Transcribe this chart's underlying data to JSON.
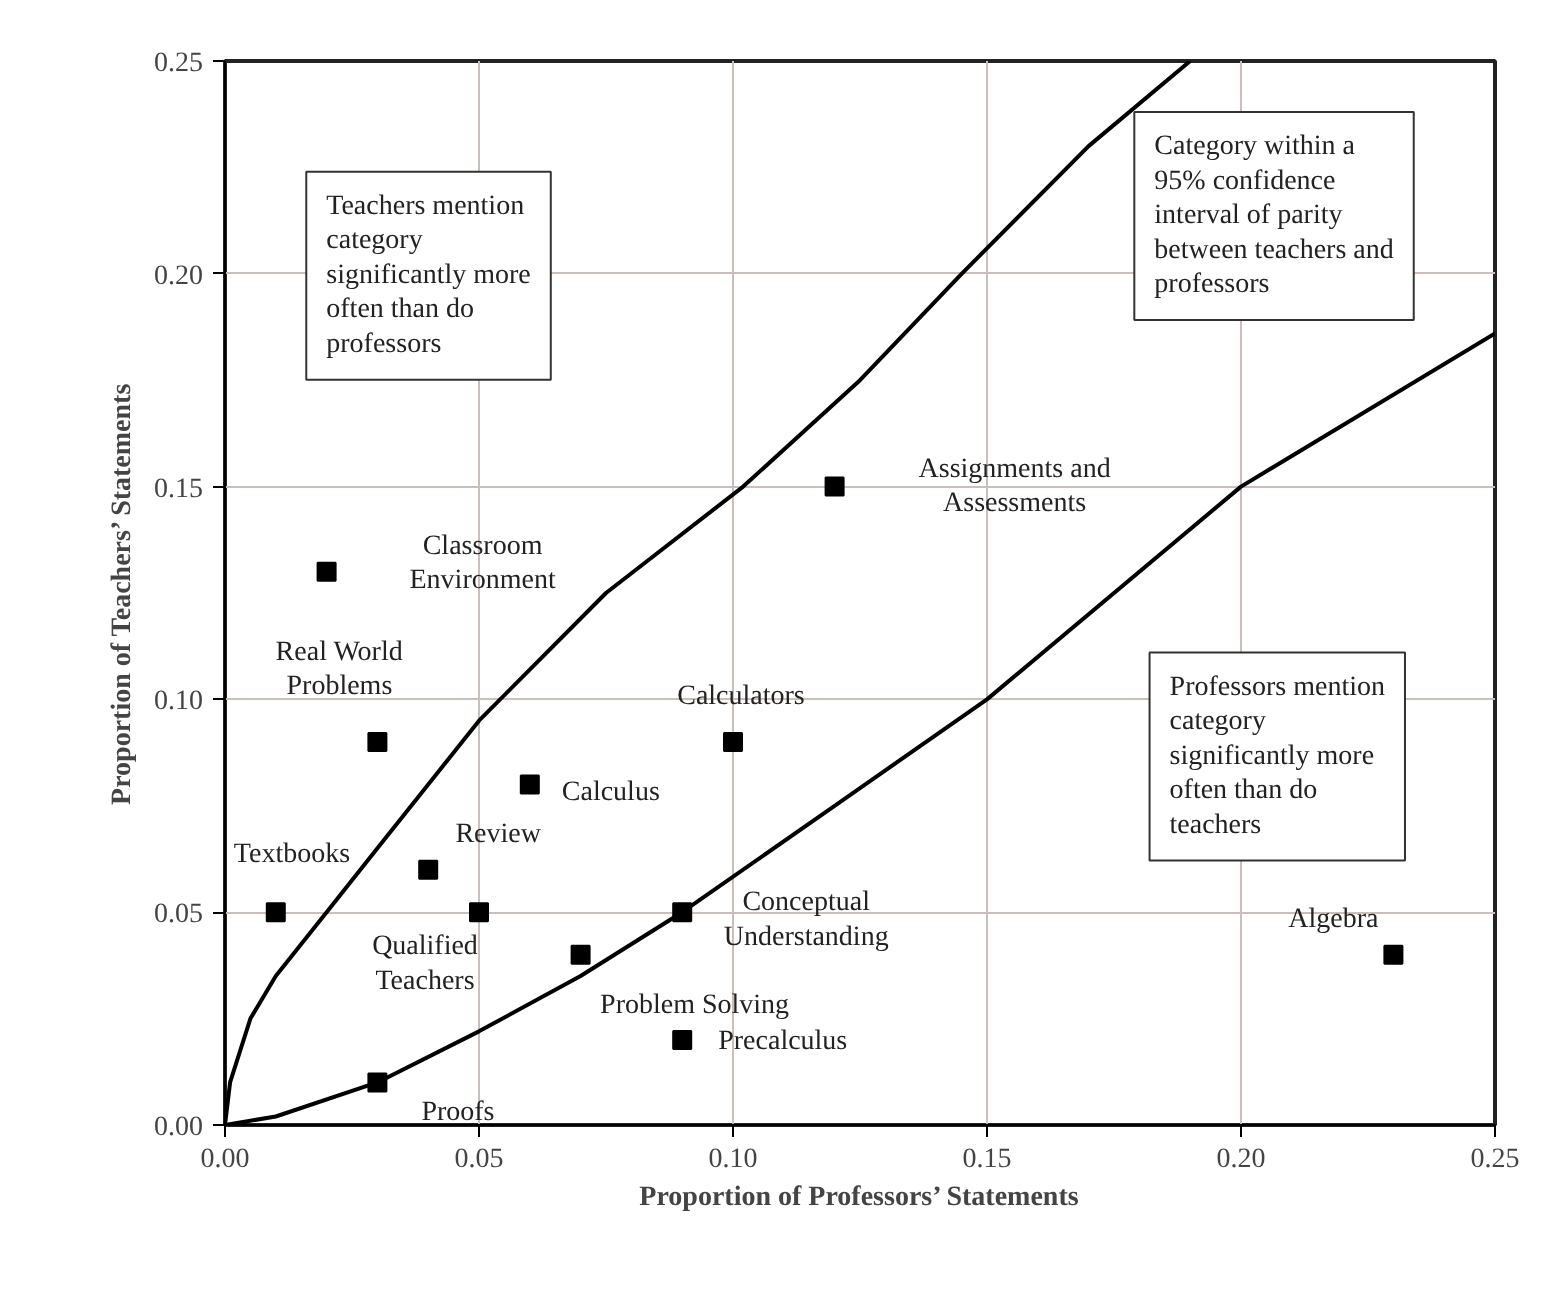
{
  "chart_data": {
    "type": "scatter",
    "xlabel": "Proportion of Professors’ Statements",
    "ylabel": "Proportion of Teachers’ Statements",
    "xlim": [
      0,
      0.25
    ],
    "ylim": [
      0,
      0.25
    ],
    "xticks": [
      {
        "value": 0,
        "label": "0.00"
      },
      {
        "value": 0.05,
        "label": "0.05"
      },
      {
        "value": 0.1,
        "label": "0.10"
      },
      {
        "value": 0.15,
        "label": "0.15"
      },
      {
        "value": 0.2,
        "label": "0.20"
      },
      {
        "value": 0.25,
        "label": "0.25"
      }
    ],
    "yticks": [
      {
        "value": 0,
        "label": "0.00"
      },
      {
        "value": 0.05,
        "label": "0.05"
      },
      {
        "value": 0.1,
        "label": "0.10"
      },
      {
        "value": 0.15,
        "label": "0.15"
      },
      {
        "value": 0.2,
        "label": "0.20"
      },
      {
        "value": 0.25,
        "label": "0.25"
      }
    ],
    "grid": true,
    "marker": "square",
    "series": [
      {
        "type": "scatter",
        "color": "#000000",
        "x": [
          0.12,
          0.02,
          0.03,
          0.1,
          0.06,
          0.04,
          0.01,
          0.05,
          0.09,
          0.07,
          0.09,
          0.03,
          0.23
        ],
        "values": [
          0.15,
          0.13,
          0.09,
          0.09,
          0.08,
          0.06,
          0.05,
          0.05,
          0.05,
          0.04,
          0.02,
          0.01,
          0.04
        ]
      },
      {
        "type": "line",
        "color": "#000000",
        "line_style": "solid",
        "marker": "none",
        "x": [
          0,
          0.001,
          0.005,
          0.01,
          0.02,
          0.03,
          0.05,
          0.075,
          0.102,
          0.125,
          0.145,
          0.17,
          0.19
        ],
        "values": [
          0,
          0.01,
          0.025,
          0.035,
          0.05,
          0.065,
          0.095,
          0.125,
          0.15,
          0.175,
          0.2,
          0.23,
          0.25
        ]
      },
      {
        "type": "line",
        "color": "#000000",
        "line_style": "solid",
        "marker": "none",
        "x": [
          0,
          0.01,
          0.03,
          0.05,
          0.07,
          0.09,
          0.12,
          0.15,
          0.2,
          0.25
        ],
        "values": [
          0,
          0.002,
          0.01,
          0.022,
          0.035,
          0.05,
          0.075,
          0.1,
          0.15,
          0.186
        ]
      }
    ],
    "annotations": [
      "Teachers mention\ncategory\nsignificantly more\noften than do\nprofessors",
      "Category within a\n95% confidence\ninterval of parity\nbetween teachers and\nprofessors",
      "Professors mention\ncategory\nsignificantly more\noften than do\nteachers",
      {
        "text": "Assignments and\nAssessments",
        "x": 0.12,
        "y": 0.15
      },
      {
        "text": "Classroom\nEnvironment",
        "x": 0.02,
        "y": 0.13
      },
      {
        "text": "Real World\nProblems",
        "x": 0.03,
        "y": 0.09
      },
      {
        "text": "Calculators",
        "x": 0.1,
        "y": 0.09
      },
      {
        "text": "Calculus",
        "x": 0.06,
        "y": 0.08
      },
      {
        "text": "Review",
        "x": 0.04,
        "y": 0.06
      },
      {
        "text": "Textbooks",
        "x": 0.01,
        "y": 0.05
      },
      {
        "text": "Qualified\nTeachers",
        "x": 0.05,
        "y": 0.05
      },
      {
        "text": "Conceptual\nUnderstanding",
        "x": 0.09,
        "y": 0.05
      },
      {
        "text": "Problem Solving",
        "x": 0.07,
        "y": 0.04
      },
      {
        "text": "Precalculus",
        "x": 0.09,
        "y": 0.02
      },
      {
        "text": "Proofs",
        "x": 0.03,
        "y": 0.01
      },
      {
        "text": "Algebra",
        "x": 0.23,
        "y": 0.04
      }
    ]
  }
}
